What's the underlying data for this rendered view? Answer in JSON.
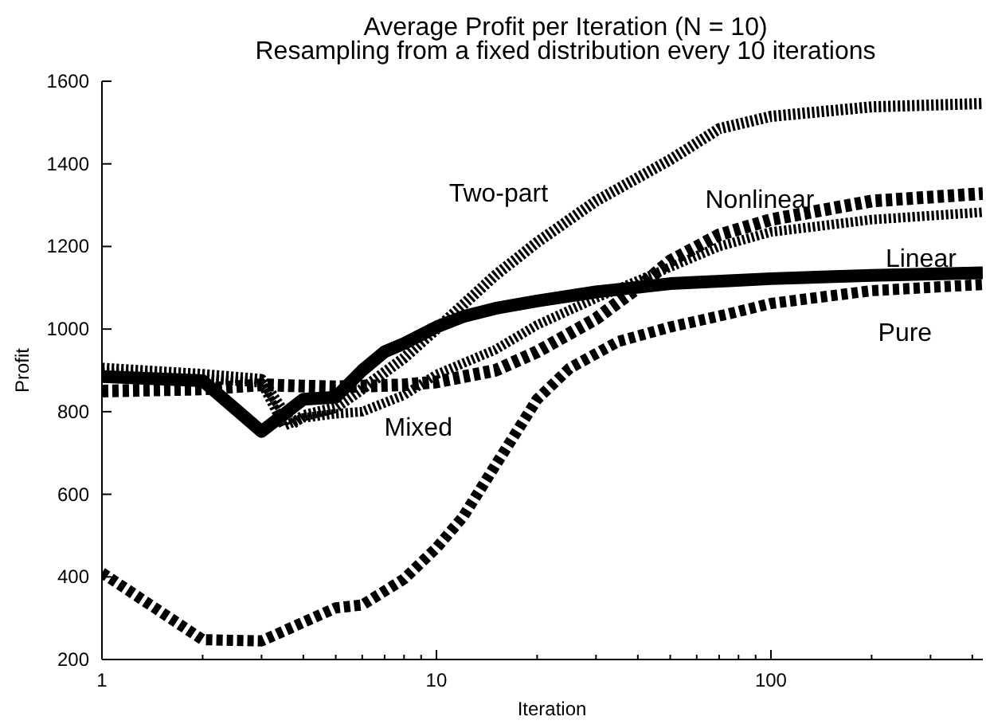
{
  "chart_data": {
    "type": "line",
    "title": "Average Profit per Iteration (N = 10)",
    "subtitle": "Resampling from a fixed distribution every 10 iterations",
    "xlabel": "Iteration",
    "ylabel": "Profit",
    "log": "x",
    "xlim": [
      1,
      430
    ],
    "xticks": [
      1,
      {
        "value": 2,
        "label": null
      },
      {
        "value": 3,
        "label": null
      },
      {
        "value": 4,
        "label": null
      },
      {
        "value": 5,
        "label": null
      },
      {
        "value": 6,
        "label": null
      },
      {
        "value": 7,
        "label": null
      },
      {
        "value": 8,
        "label": null
      },
      {
        "value": 9,
        "label": null
      },
      10,
      {
        "value": 20,
        "label": null
      },
      {
        "value": 30,
        "label": null
      },
      {
        "value": 40,
        "label": null
      },
      {
        "value": 50,
        "label": null
      },
      {
        "value": 60,
        "label": null
      },
      {
        "value": 70,
        "label": null
      },
      {
        "value": 80,
        "label": null
      },
      {
        "value": 90,
        "label": null
      },
      100,
      {
        "value": 200,
        "label": null
      },
      {
        "value": 300,
        "label": null
      },
      {
        "value": 400,
        "label": null
      }
    ],
    "ylim": [
      200,
      1600
    ],
    "yticks": [
      200,
      400,
      600,
      800,
      1000,
      1200,
      1400,
      1600
    ],
    "series": [
      {
        "name": "Two-part",
        "color": "#000000",
        "line_style": "dotted",
        "x": [
          1,
          2,
          3,
          3.7,
          4,
          5,
          6,
          8,
          10,
          15,
          20,
          30,
          50,
          70,
          100,
          200,
          430
        ],
        "values": [
          905,
          890,
          878,
          770,
          790,
          810,
          855,
          930,
          1000,
          1130,
          1210,
          1310,
          1410,
          1485,
          1515,
          1538,
          1546
        ]
      },
      {
        "name": "Nonlinear",
        "color": "#000000",
        "line_style": "dashed",
        "x": [
          1,
          2,
          3,
          4,
          5,
          6,
          8,
          10,
          15,
          20,
          30,
          40,
          50,
          70,
          100,
          200,
          430
        ],
        "values": [
          850,
          855,
          865,
          862,
          860,
          862,
          865,
          872,
          900,
          945,
          1025,
          1100,
          1165,
          1228,
          1265,
          1310,
          1328
        ]
      },
      {
        "name": "Mixed",
        "color": "#000000",
        "line_style": "dotted",
        "x": [
          1,
          2,
          3,
          3.5,
          4,
          5,
          6,
          8,
          10,
          15,
          20,
          30,
          50,
          70,
          100,
          200,
          430
        ],
        "values": [
          895,
          880,
          870,
          765,
          785,
          795,
          800,
          840,
          890,
          950,
          1010,
          1075,
          1150,
          1200,
          1235,
          1265,
          1283
        ]
      },
      {
        "name": "Pure",
        "color": "#000000",
        "line_style": "dashed",
        "x": [
          1,
          2,
          3,
          4,
          5,
          6,
          8,
          10,
          12,
          15,
          20,
          25,
          35,
          50,
          75,
          100,
          200,
          430
        ],
        "values": [
          410,
          248,
          245,
          290,
          325,
          332,
          395,
          470,
          545,
          670,
          830,
          905,
          970,
          1005,
          1037,
          1062,
          1093,
          1108
        ]
      },
      {
        "name": "Linear",
        "color": "#000000",
        "line_style": "solid",
        "x": [
          1,
          2,
          3,
          4,
          5,
          6,
          7,
          8,
          10,
          12,
          15,
          20,
          30,
          50,
          75,
          100,
          200,
          430
        ],
        "values": [
          885,
          875,
          752,
          830,
          835,
          900,
          945,
          965,
          1005,
          1030,
          1050,
          1068,
          1090,
          1110,
          1117,
          1122,
          1130,
          1136
        ]
      }
    ]
  }
}
